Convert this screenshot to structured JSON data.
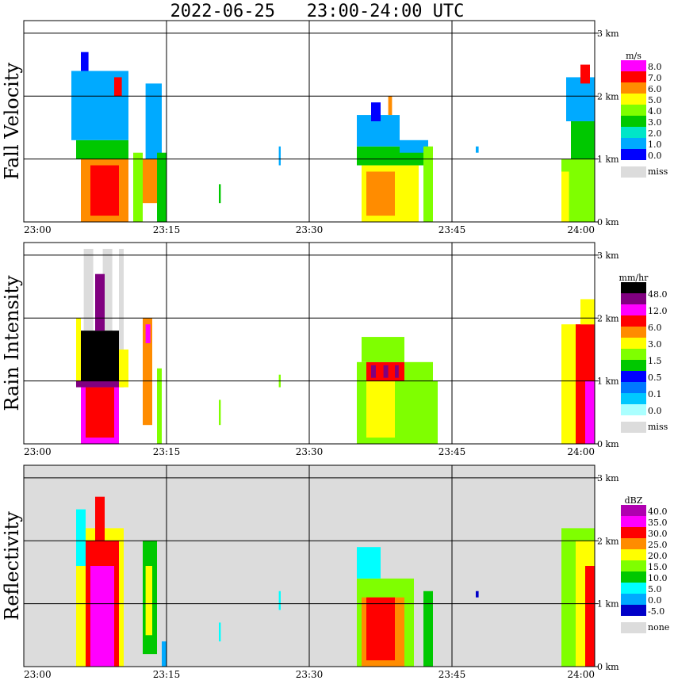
{
  "title": "2022-06-25   23:00-24:00 UTC",
  "colors": {
    "grid": "#000000",
    "missing": "#dcdcdc",
    "background": "#ffffff"
  },
  "chart_data": [
    {
      "type": "heatmap",
      "title": "Fall Velocity",
      "units": "m/s",
      "x_ticks": [
        "23:00",
        "23:15",
        "23:30",
        "23:45",
        "24:00"
      ],
      "y_ticks": [
        "0 km",
        "1 km",
        "2 km",
        "3 km"
      ],
      "ylim": [
        0,
        3.2
      ],
      "legend": {
        "labels": [
          "8.0",
          "7.0",
          "6.0",
          "5.0",
          "4.0",
          "3.0",
          "2.0",
          "1.0",
          "0.0"
        ],
        "colors": [
          "#ff00ff",
          "#ff0000",
          "#ff8c00",
          "#ffff00",
          "#7fff00",
          "#00c800",
          "#00e6c8",
          "#00aaff",
          "#0000ff"
        ],
        "missing_label": "miss"
      },
      "cells": [
        {
          "t0": 6.0,
          "t1": 11.0,
          "h0": 0.0,
          "h1": 1.0,
          "v": 6.0
        },
        {
          "t0": 7.0,
          "t1": 10.0,
          "h0": 0.1,
          "h1": 0.9,
          "v": 7.0
        },
        {
          "t0": 5.5,
          "t1": 11.0,
          "h0": 1.0,
          "h1": 1.3,
          "v": 3.0
        },
        {
          "t0": 5.0,
          "t1": 11.0,
          "h0": 1.3,
          "h1": 2.4,
          "v": 1.0
        },
        {
          "t0": 6.0,
          "t1": 6.8,
          "h0": 2.4,
          "h1": 2.7,
          "v": 0.5
        },
        {
          "t0": 9.5,
          "t1": 10.3,
          "h0": 2.0,
          "h1": 2.3,
          "v": 7.5
        },
        {
          "t0": 11.5,
          "t1": 12.5,
          "h0": 0.0,
          "h1": 1.1,
          "v": 4.0
        },
        {
          "t0": 12.5,
          "t1": 14.0,
          "h0": 0.3,
          "h1": 1.0,
          "v": 6.0
        },
        {
          "t0": 12.8,
          "t1": 14.5,
          "h0": 1.0,
          "h1": 2.2,
          "v": 1.0
        },
        {
          "t0": 14.0,
          "t1": 15.0,
          "h0": 0.0,
          "h1": 1.1,
          "v": 3.0
        },
        {
          "t0": 20.5,
          "t1": 20.7,
          "h0": 0.3,
          "h1": 0.6,
          "v": 3.0
        },
        {
          "t0": 26.8,
          "t1": 27.0,
          "h0": 0.9,
          "h1": 1.2,
          "v": 1.0
        },
        {
          "t0": 35.5,
          "t1": 41.5,
          "h0": 0.0,
          "h1": 0.9,
          "v": 5.0
        },
        {
          "t0": 36.0,
          "t1": 39.0,
          "h0": 0.1,
          "h1": 0.8,
          "v": 6.0
        },
        {
          "t0": 35.0,
          "t1": 42.0,
          "h0": 0.9,
          "h1": 1.2,
          "v": 3.0
        },
        {
          "t0": 35.0,
          "t1": 39.5,
          "h0": 1.2,
          "h1": 1.7,
          "v": 1.0
        },
        {
          "t0": 39.5,
          "t1": 42.5,
          "h0": 1.1,
          "h1": 1.3,
          "v": 1.5
        },
        {
          "t0": 42.0,
          "t1": 43.0,
          "h0": 0.0,
          "h1": 1.2,
          "v": 4.0
        },
        {
          "t0": 36.5,
          "t1": 37.5,
          "h0": 1.6,
          "h1": 1.9,
          "v": 0.5
        },
        {
          "t0": 38.3,
          "t1": 38.7,
          "h0": 1.7,
          "h1": 2.0,
          "v": 6.0
        },
        {
          "t0": 47.5,
          "t1": 47.8,
          "h0": 1.1,
          "h1": 1.2,
          "v": 1.0
        },
        {
          "t0": 56.5,
          "t1": 60.0,
          "h0": 0.0,
          "h1": 1.0,
          "v": 4.0
        },
        {
          "t0": 56.5,
          "t1": 57.3,
          "h0": 0.0,
          "h1": 0.8,
          "v": 5.0
        },
        {
          "t0": 57.5,
          "t1": 60.0,
          "h0": 1.0,
          "h1": 1.6,
          "v": 3.0
        },
        {
          "t0": 57.0,
          "t1": 60.0,
          "h0": 1.6,
          "h1": 2.3,
          "v": 1.0
        },
        {
          "t0": 58.5,
          "t1": 59.5,
          "h0": 2.2,
          "h1": 2.5,
          "v": 7.5
        }
      ]
    },
    {
      "type": "heatmap",
      "title": "Rain Intensity",
      "units": "mm/hr",
      "x_ticks": [
        "23:00",
        "23:15",
        "23:30",
        "23:45",
        "24:00"
      ],
      "y_ticks": [
        "0 km",
        "1 km",
        "2 km",
        "3 km"
      ],
      "ylim": [
        0,
        3.2
      ],
      "legend": {
        "labels": [
          "48.0",
          "12.0",
          "6.0",
          "3.0",
          "1.5",
          "0.5",
          "0.1",
          "0.0"
        ],
        "colors": [
          "#000000",
          "#800080",
          "#ff00ff",
          "#ff0000",
          "#ff8c00",
          "#ffff00",
          "#7fff00",
          "#00c800",
          "#0000ff",
          "#0078ff",
          "#00c8ff",
          "#aaffff"
        ],
        "missing_label": "miss"
      },
      "cells": [
        {
          "t0": 6.3,
          "t1": 7.3,
          "h0": 1.4,
          "h1": 3.1,
          "v": -1
        },
        {
          "t0": 8.3,
          "t1": 9.3,
          "h0": 1.4,
          "h1": 3.1,
          "v": -1
        },
        {
          "t0": 10.0,
          "t1": 10.5,
          "h0": 1.4,
          "h1": 3.1,
          "v": -1
        },
        {
          "t0": 6.0,
          "t1": 10.0,
          "h0": 0.0,
          "h1": 1.0,
          "v": 6.0
        },
        {
          "t0": 6.5,
          "t1": 9.5,
          "h0": 0.1,
          "h1": 0.9,
          "v": 3.0
        },
        {
          "t0": 5.5,
          "t1": 10.5,
          "h0": 0.9,
          "h1": 1.1,
          "v": 12.0
        },
        {
          "t0": 6.0,
          "t1": 10.0,
          "h0": 1.0,
          "h1": 1.8,
          "v": 48.0
        },
        {
          "t0": 7.5,
          "t1": 8.5,
          "h0": 1.8,
          "h1": 2.7,
          "v": 12.0
        },
        {
          "t0": 5.5,
          "t1": 6.0,
          "h0": 1.0,
          "h1": 2.0,
          "v": 1.0
        },
        {
          "t0": 10.0,
          "t1": 11.0,
          "h0": 0.9,
          "h1": 1.5,
          "v": 1.0
        },
        {
          "t0": 12.5,
          "t1": 13.5,
          "h0": 0.3,
          "h1": 2.0,
          "v": 1.5
        },
        {
          "t0": 12.8,
          "t1": 13.3,
          "h0": 1.6,
          "h1": 1.9,
          "v": 6.0
        },
        {
          "t0": 14.0,
          "t1": 14.5,
          "h0": 0.0,
          "h1": 1.2,
          "v": 0.3
        },
        {
          "t0": 20.5,
          "t1": 20.7,
          "h0": 0.3,
          "h1": 0.7,
          "v": 0.1
        },
        {
          "t0": 26.8,
          "t1": 27.0,
          "h0": 0.9,
          "h1": 1.1,
          "v": 0.1
        },
        {
          "t0": 35.0,
          "t1": 43.0,
          "h0": 0.0,
          "h1": 1.3,
          "v": 0.3
        },
        {
          "t0": 36.0,
          "t1": 39.0,
          "h0": 0.1,
          "h1": 1.0,
          "v": 0.5
        },
        {
          "t0": 36.0,
          "t1": 40.0,
          "h0": 1.0,
          "h1": 1.3,
          "v": 3.0
        },
        {
          "t0": 36.5,
          "t1": 37.0,
          "h0": 1.05,
          "h1": 1.25,
          "v": 12.0
        },
        {
          "t0": 37.8,
          "t1": 38.3,
          "h0": 1.05,
          "h1": 1.25,
          "v": 12.0
        },
        {
          "t0": 39.0,
          "t1": 39.4,
          "h0": 1.05,
          "h1": 1.25,
          "v": 12.0
        },
        {
          "t0": 35.5,
          "t1": 40.0,
          "h0": 1.3,
          "h1": 1.7,
          "v": 0.2
        },
        {
          "t0": 42.5,
          "t1": 43.5,
          "h0": 0.0,
          "h1": 1.0,
          "v": 0.1
        },
        {
          "t0": 56.5,
          "t1": 60.0,
          "h0": 0.0,
          "h1": 1.9,
          "v": 1.0
        },
        {
          "t0": 58.0,
          "t1": 60.0,
          "h0": 0.0,
          "h1": 1.9,
          "v": 3.0
        },
        {
          "t0": 59.0,
          "t1": 60.0,
          "h0": 0.0,
          "h1": 1.0,
          "v": 6.0
        },
        {
          "t0": 58.5,
          "t1": 60.0,
          "h0": 1.9,
          "h1": 2.3,
          "v": 0.5
        }
      ]
    },
    {
      "type": "heatmap",
      "title": "Reflectivity",
      "units": "dBZ",
      "x_ticks": [
        "23:00",
        "23:15",
        "23:30",
        "23:45",
        "24:00"
      ],
      "y_ticks": [
        "0 km",
        "1 km",
        "2 km",
        "3 km"
      ],
      "ylim": [
        0,
        3.2
      ],
      "legend": {
        "labels": [
          "40.0",
          "35.0",
          "30.0",
          "25.0",
          "20.0",
          "15.0",
          "10.0",
          "5.0",
          "0.0",
          "-5.0"
        ],
        "colors": [
          "#b000b0",
          "#ff00ff",
          "#ff0000",
          "#ff8c00",
          "#ffff00",
          "#7fff00",
          "#00c800",
          "#00ffff",
          "#00aaff",
          "#0000c8"
        ],
        "missing_label": "none"
      },
      "cells": [
        {
          "t0": 5.5,
          "t1": 10.5,
          "h0": 0.0,
          "h1": 2.2,
          "v": 20.0
        },
        {
          "t0": 6.5,
          "t1": 10.0,
          "h0": 0.0,
          "h1": 2.0,
          "v": 30.0
        },
        {
          "t0": 7.0,
          "t1": 9.5,
          "h0": 0.0,
          "h1": 1.6,
          "v": 38.0
        },
        {
          "t0": 7.5,
          "t1": 8.5,
          "h0": 1.6,
          "h1": 2.7,
          "v": 30.0
        },
        {
          "t0": 5.5,
          "t1": 6.5,
          "h0": 1.6,
          "h1": 2.5,
          "v": 5.0
        },
        {
          "t0": 12.5,
          "t1": 14.0,
          "h0": 0.2,
          "h1": 2.0,
          "v": 12.0
        },
        {
          "t0": 12.8,
          "t1": 13.5,
          "h0": 0.5,
          "h1": 1.6,
          "v": 20.0
        },
        {
          "t0": 14.5,
          "t1": 15.0,
          "h0": 0.0,
          "h1": 0.4,
          "v": 0.0
        },
        {
          "t0": 20.5,
          "t1": 20.7,
          "h0": 0.4,
          "h1": 0.7,
          "v": 5.0
        },
        {
          "t0": 26.8,
          "t1": 27.0,
          "h0": 0.9,
          "h1": 1.2,
          "v": 5.0
        },
        {
          "t0": 35.0,
          "t1": 41.0,
          "h0": 0.0,
          "h1": 1.4,
          "v": 15.0
        },
        {
          "t0": 35.5,
          "t1": 40.0,
          "h0": 0.0,
          "h1": 1.1,
          "v": 25.0
        },
        {
          "t0": 36.0,
          "t1": 39.0,
          "h0": 0.1,
          "h1": 1.1,
          "v": 30.0
        },
        {
          "t0": 35.0,
          "t1": 37.5,
          "h0": 1.4,
          "h1": 1.9,
          "v": 5.0
        },
        {
          "t0": 42.0,
          "t1": 43.0,
          "h0": 0.0,
          "h1": 1.2,
          "v": 10.0
        },
        {
          "t0": 47.5,
          "t1": 47.8,
          "h0": 1.1,
          "h1": 1.2,
          "v": -5.0
        },
        {
          "t0": 56.5,
          "t1": 60.0,
          "h0": 0.0,
          "h1": 2.2,
          "v": 15.0
        },
        {
          "t0": 58.0,
          "t1": 60.0,
          "h0": 0.0,
          "h1": 2.0,
          "v": 20.0
        },
        {
          "t0": 59.0,
          "t1": 60.0,
          "h0": 0.0,
          "h1": 1.6,
          "v": 30.0
        }
      ]
    }
  ]
}
